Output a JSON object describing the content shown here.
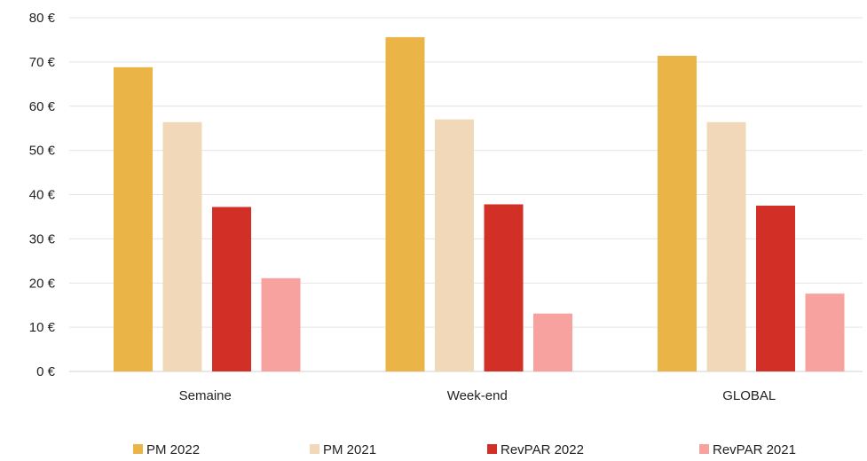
{
  "chart_data": {
    "type": "bar",
    "categories": [
      "Semaine",
      "Week-end",
      "GLOBAL"
    ],
    "series": [
      {
        "name": "PM 2022",
        "color": "#EAB447",
        "values": [
          68.8,
          75.6,
          71.4
        ]
      },
      {
        "name": "PM 2021",
        "color": "#F1D8B8",
        "values": [
          56.4,
          57.0,
          56.4
        ]
      },
      {
        "name": "RevPAR 2022",
        "color": "#D22F27",
        "values": [
          37.2,
          37.8,
          37.5
        ]
      },
      {
        "name": "RevPAR 2021",
        "color": "#F8A29F",
        "values": [
          21.1,
          13.1,
          17.6
        ]
      }
    ],
    "ylim": [
      0,
      80
    ],
    "ytick_step": 10,
    "ytick_suffix": " €",
    "title": "",
    "xlabel": "",
    "ylabel": "",
    "grid": true,
    "legend_position": "bottom"
  }
}
